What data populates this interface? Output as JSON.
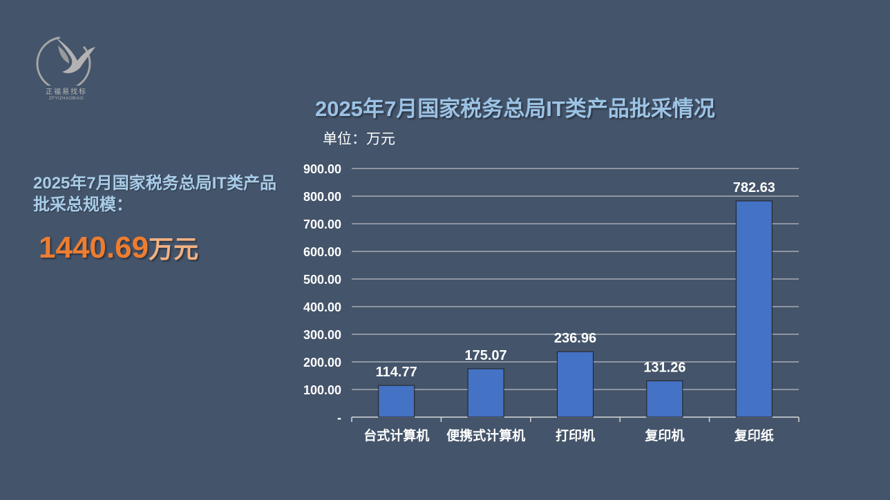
{
  "logo": {
    "brand_cn": "正福易找标",
    "brand_en": "ZFYIZHAOBIAO"
  },
  "summary": {
    "label": "2025年7月国家税务总局IT类产品批采总规模：",
    "total_value": "1440.69",
    "total_unit": "万元"
  },
  "colors": {
    "background": "#44546a",
    "bar": "#4472c4",
    "title": "#9cc3e5",
    "accent": "#ed7d31"
  },
  "chart_data": {
    "type": "bar",
    "title": "2025年7月国家税务总局IT类产品批采情况",
    "unit_label": "单位：万元",
    "categories": [
      "台式计算机",
      "便携式计算机",
      "打印机",
      "复印机",
      "复印纸"
    ],
    "values": [
      114.77,
      175.07,
      236.96,
      131.26,
      782.63
    ],
    "data_labels": [
      "114.77",
      "175.07",
      "236.96",
      "131.26",
      "782.63"
    ],
    "y_ticks": [
      "-",
      "100.00",
      "200.00",
      "300.00",
      "400.00",
      "500.00",
      "600.00",
      "700.00",
      "800.00",
      "900.00"
    ],
    "ylim": [
      0,
      900
    ],
    "grid": true,
    "legend": "none"
  }
}
